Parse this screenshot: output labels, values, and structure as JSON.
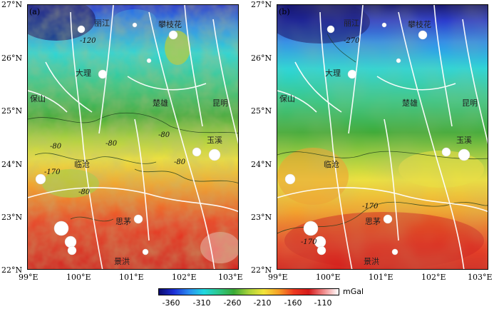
{
  "panels": [
    {
      "label": "(a)",
      "contour_labels": [
        "-120",
        "-80",
        "-80",
        "-80",
        "-80",
        "-80",
        "-170"
      ],
      "cities": [
        "丽江",
        "攀枝花",
        "大理",
        "保山",
        "楚雄",
        "昆明",
        "玉溪",
        "临沧",
        "思茅",
        "景洪"
      ]
    },
    {
      "label": "(b)",
      "contour_labels": [
        "-270",
        "-170",
        "-170"
      ],
      "cities": [
        "丽江",
        "攀枝花",
        "大理",
        "保山",
        "楚雄",
        "昆明",
        "玉溪",
        "临沧",
        "思茅",
        "景洪"
      ]
    }
  ],
  "x_ticks": [
    "99°E",
    "100°E",
    "101°E",
    "102°E",
    "103°E"
  ],
  "y_ticks": [
    "27°N",
    "26°N",
    "25°N",
    "24°N",
    "23°N",
    "22°N"
  ],
  "colorbar": {
    "unit": "mGal",
    "ticks": [
      "-360",
      "-310",
      "-260",
      "-210",
      "-160",
      "-110"
    ],
    "colors": [
      "#0a0a6e",
      "#1c2fd6",
      "#2a8cf0",
      "#20d8e0",
      "#2ec88a",
      "#3aaa36",
      "#a8d23a",
      "#f2e43a",
      "#f6a028",
      "#ee3a20",
      "#d41a1a",
      "#f08a8a",
      "#ffffff"
    ]
  }
}
